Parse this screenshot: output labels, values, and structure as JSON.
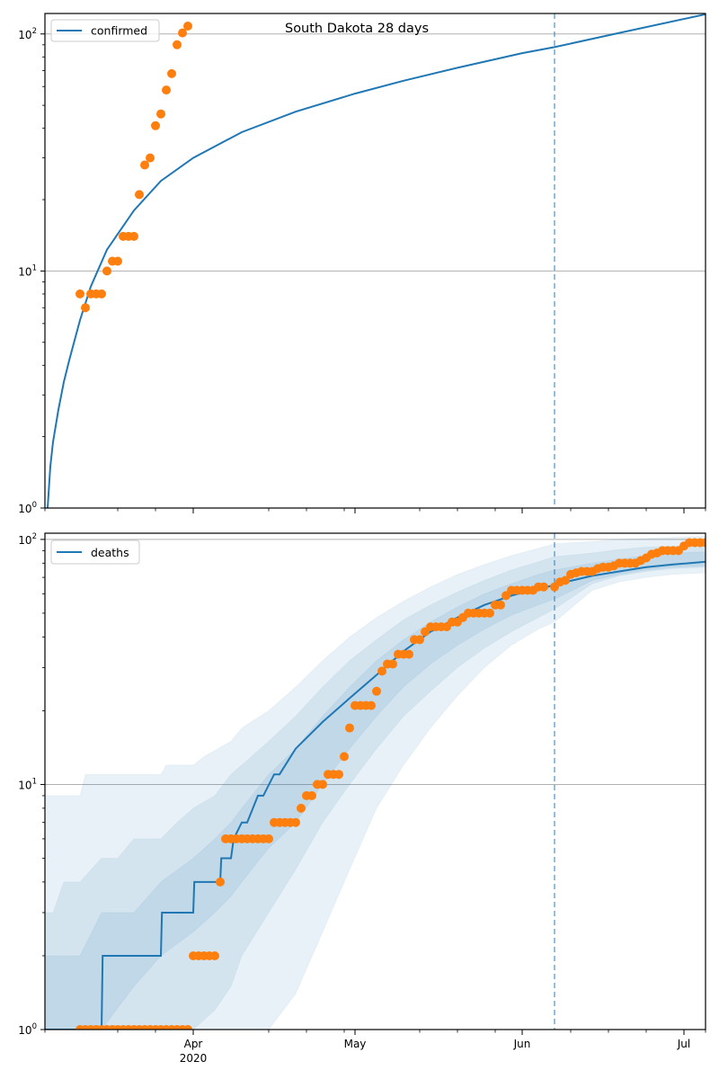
{
  "chart_data": [
    {
      "type": "scatter",
      "panel": "top",
      "title": "South Dakota 28 days",
      "yscale": "log",
      "ylim": [
        1,
        122
      ],
      "xlim_day": [
        3.5,
        126
      ],
      "x_unit": "days since 2020-03-01",
      "ytick_labels": [
        {
          "base": "10",
          "exp": "0",
          "value": 1
        },
        {
          "base": "10",
          "exp": "1",
          "value": 10
        },
        {
          "base": "10",
          "exp": "2",
          "value": 100
        }
      ],
      "grid": "horizontal-major",
      "legend": {
        "placement": "top-left",
        "entries": [
          "confirmed"
        ]
      },
      "forecast_start_day": 98,
      "series": [
        {
          "name": "confirmed",
          "kind": "model-line",
          "color": "#1f77b4",
          "x": [
            4,
            4.5,
            5,
            6,
            7,
            8,
            10,
            12,
            15,
            20,
            25,
            31,
            40,
            50,
            61,
            70,
            80,
            92,
            98,
            110,
            126
          ],
          "y": [
            1,
            1.5,
            1.9,
            2.6,
            3.4,
            4.2,
            6.2,
            8.6,
            12.3,
            18,
            24,
            30,
            38.5,
            47,
            56,
            63.5,
            72,
            83,
            88,
            101,
            121
          ]
        },
        {
          "name": "confirmed observed",
          "kind": "points",
          "color": "#ff7f0e",
          "x": [
            10,
            11,
            12,
            13,
            14,
            15,
            16,
            17,
            18,
            19,
            20,
            21,
            22,
            23,
            24,
            25,
            26,
            27,
            28,
            29,
            30
          ],
          "y": [
            8,
            7,
            8,
            8,
            8,
            10,
            11,
            11,
            14,
            14,
            14,
            21,
            28,
            30,
            41,
            46,
            58,
            68,
            90,
            101,
            108
          ]
        }
      ]
    },
    {
      "type": "scatter",
      "panel": "bottom",
      "title": "",
      "yscale": "log",
      "ylim": [
        1,
        106
      ],
      "xlim_day": [
        3.5,
        126
      ],
      "x_unit": "days since 2020-03-01",
      "ytick_labels": [
        {
          "base": "10",
          "exp": "0",
          "value": 1
        },
        {
          "base": "10",
          "exp": "1",
          "value": 10
        },
        {
          "base": "10",
          "exp": "2",
          "value": 100
        }
      ],
      "xtick_labels": [
        {
          "day": 31,
          "label": "Apr",
          "sublabel": "2020"
        },
        {
          "day": 61,
          "label": "May",
          "sublabel": ""
        },
        {
          "day": 92,
          "label": "Jun",
          "sublabel": ""
        },
        {
          "day": 122,
          "label": "Jul",
          "sublabel": ""
        }
      ],
      "grid": "horizontal-major",
      "legend": {
        "placement": "top-left",
        "entries": [
          "deaths"
        ]
      },
      "forecast_start_day": 98,
      "bands": [
        {
          "name": "outer band",
          "color": "#1f77b4",
          "opacity": 0.1,
          "x": [
            3.5,
            10,
            11,
            14,
            15,
            20,
            21,
            25,
            26,
            31,
            33,
            38,
            40,
            45,
            50,
            55,
            60,
            65,
            70,
            75,
            80,
            85,
            90,
            95,
            98,
            105,
            110,
            115,
            120,
            126
          ],
          "upper": [
            9,
            9,
            11,
            11,
            11,
            11,
            11,
            11,
            12,
            12,
            13,
            15,
            17,
            20,
            25,
            32,
            40,
            48,
            56,
            64,
            72,
            79,
            86,
            92,
            96,
            98,
            100,
            101,
            102,
            103
          ],
          "lower": [
            1,
            1,
            1,
            1,
            1,
            1,
            1,
            1,
            1,
            1,
            1,
            1,
            1,
            1,
            1.4,
            2.5,
            4.5,
            8,
            12,
            17,
            23,
            30,
            37,
            43,
            46,
            62,
            67,
            70,
            72,
            73
          ]
        },
        {
          "name": "middle band",
          "color": "#1f77b4",
          "opacity": 0.1,
          "x": [
            3.5,
            5,
            7,
            10,
            14,
            17,
            20,
            25,
            28,
            31,
            35,
            38,
            40,
            45,
            50,
            55,
            60,
            65,
            70,
            75,
            80,
            85,
            90,
            95,
            98,
            105,
            110,
            115,
            120,
            126
          ],
          "upper": [
            3,
            3,
            4,
            4,
            5,
            5,
            6,
            6,
            7,
            8,
            9,
            11,
            12,
            15,
            19,
            25,
            32,
            39,
            47,
            54,
            61,
            68,
            75,
            81,
            85,
            88,
            91,
            93,
            94,
            95
          ],
          "lower": [
            1,
            1,
            1,
            1,
            1,
            1,
            1,
            1,
            1,
            1,
            1.2,
            1.5,
            2,
            3,
            4.5,
            7,
            10,
            14,
            19,
            24,
            30,
            36,
            42,
            48,
            52,
            66,
            71,
            74,
            76,
            77
          ]
        },
        {
          "name": "inner band",
          "color": "#1f77b4",
          "opacity": 0.1,
          "x": [
            3.5,
            10,
            14,
            20,
            25,
            31,
            35,
            38,
            40,
            45,
            50,
            55,
            60,
            65,
            70,
            75,
            80,
            85,
            90,
            95,
            98,
            105,
            110,
            115,
            120,
            126
          ],
          "upper": [
            2,
            2,
            3,
            3,
            4,
            5,
            6,
            7,
            8,
            11,
            14,
            19,
            25,
            32,
            39,
            46,
            53,
            60,
            66,
            72,
            75,
            80,
            83,
            86,
            88,
            89
          ],
          "lower": [
            1,
            1,
            1,
            1.5,
            2,
            2.5,
            3,
            3.5,
            4,
            5.5,
            7,
            10,
            14,
            19,
            25,
            31,
            37,
            43,
            49,
            54,
            57,
            68,
            72,
            75,
            77,
            78
          ]
        }
      ],
      "series": [
        {
          "name": "deaths",
          "kind": "model-line",
          "color": "#1f77b4",
          "x": [
            3.5,
            14,
            14.2,
            25,
            25.2,
            31,
            31.2,
            36,
            36.2,
            38,
            38.5,
            40,
            41,
            43,
            44,
            46,
            47,
            50,
            55,
            60,
            65,
            70,
            75,
            80,
            85,
            90,
            95,
            98,
            100,
            105,
            110,
            115,
            120,
            126
          ],
          "y": [
            1,
            1,
            2,
            2,
            3,
            3,
            4,
            4,
            5,
            5,
            6,
            7,
            7,
            9,
            9,
            11,
            11,
            14,
            18,
            22.5,
            28,
            35,
            42,
            48,
            54,
            59,
            63,
            65,
            67,
            71,
            74,
            77,
            79,
            81
          ]
        },
        {
          "name": "deaths observed",
          "kind": "points",
          "color": "#ff7f0e",
          "x": [
            10,
            11,
            12,
            13,
            14,
            15,
            16,
            17,
            18,
            19,
            20,
            21,
            22,
            23,
            24,
            25,
            26,
            27,
            28,
            29,
            30,
            31,
            32,
            33,
            34,
            35,
            36,
            37,
            38,
            39,
            40,
            41,
            42,
            43,
            44,
            45,
            46,
            47,
            48,
            49,
            50,
            51,
            52,
            53,
            54,
            55,
            56,
            57,
            58,
            59,
            60,
            61,
            62,
            63,
            64,
            65,
            66,
            67,
            68,
            69,
            70,
            71,
            72,
            73,
            74,
            75,
            76,
            77,
            78,
            79,
            80,
            81,
            82,
            83,
            84,
            85,
            86,
            87,
            88,
            89,
            90,
            91,
            92,
            93,
            94,
            95,
            96,
            98,
            99,
            100,
            101,
            102,
            103,
            104,
            105,
            106,
            107,
            108,
            109,
            110,
            111,
            112,
            113,
            114,
            115,
            116,
            117,
            118,
            119,
            120,
            121,
            122,
            123,
            124,
            125,
            126
          ],
          "y": [
            1,
            1,
            1,
            1,
            1,
            1,
            1,
            1,
            1,
            1,
            1,
            1,
            1,
            1,
            1,
            1,
            1,
            1,
            1,
            1,
            1,
            2,
            2,
            2,
            2,
            2,
            4,
            6,
            6,
            6,
            6,
            6,
            6,
            6,
            6,
            6,
            7,
            7,
            7,
            7,
            7,
            8,
            9,
            9,
            10,
            10,
            11,
            11,
            11,
            13,
            17,
            21,
            21,
            21,
            21,
            24,
            29,
            31,
            31,
            34,
            34,
            34,
            39,
            39,
            42,
            44,
            44,
            44,
            44,
            46,
            46,
            48,
            50,
            50,
            50,
            50,
            50,
            54,
            54,
            59,
            62,
            62,
            62,
            62,
            62,
            64,
            64,
            64,
            67,
            68,
            72,
            73,
            74,
            74,
            74,
            76,
            77,
            77,
            78,
            80,
            80,
            80,
            80,
            82,
            84,
            87,
            88,
            90,
            90,
            90,
            90,
            94,
            97,
            97,
            97,
            97
          ]
        }
      ]
    }
  ]
}
